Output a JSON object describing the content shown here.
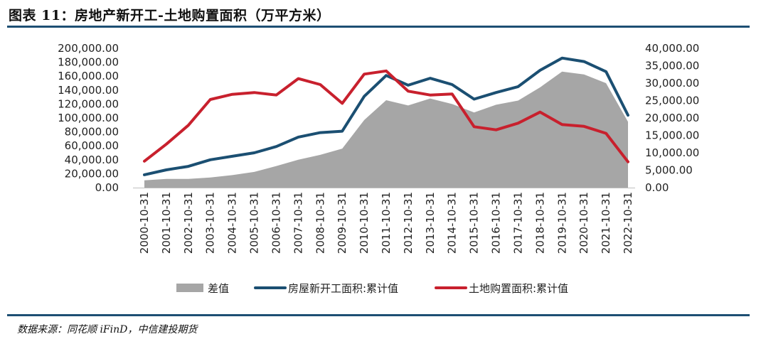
{
  "header": {
    "title": "图表 11：房地产新开工-土地购置面积（万平方米）"
  },
  "source": {
    "text": "数据来源：同花顺 iFinD，中信建投期货"
  },
  "chart_data": {
    "type": "line",
    "categories": [
      "2000-10-31",
      "2001-10-31",
      "2002-10-31",
      "2003-10-31",
      "2004-10-31",
      "2005-10-31",
      "2006-10-31",
      "2007-10-31",
      "2008-10-31",
      "2009-10-31",
      "2010-10-31",
      "2011-10-31",
      "2012-10-31",
      "2013-10-31",
      "2014-10-31",
      "2015-10-31",
      "2016-10-31",
      "2017-10-31",
      "2018-10-31",
      "2019-10-31",
      "2020-10-31",
      "2021-10-31",
      "2022-10-31"
    ],
    "y_left": {
      "ylim": [
        0,
        200000
      ],
      "ticks": [
        "200,000.00",
        "180,000.00",
        "160,000.00",
        "140,000.00",
        "120,000.00",
        "100,000.00",
        "80,000.00",
        "60,000.00",
        "40,000.00",
        "20,000.00",
        "0.00"
      ]
    },
    "y_right": {
      "ylim": [
        0,
        40000
      ],
      "ticks": [
        "40,000.00",
        "35,000.00",
        "30,000.00",
        "25,000.00",
        "20,000.00",
        "15,000.00",
        "10,000.00",
        "5,000.00",
        "0.00"
      ]
    },
    "series": [
      {
        "name": "差值",
        "type": "area",
        "axis": "left",
        "color": "#a6a6a6",
        "values": [
          10500,
          12500,
          12500,
          14500,
          18000,
          22500,
          31000,
          40000,
          47000,
          56000,
          97000,
          125500,
          118000,
          128000,
          120000,
          108000,
          119000,
          125000,
          144000,
          166500,
          162500,
          150000,
          94500
        ]
      },
      {
        "name": "房屋新开工面积:累计值",
        "type": "line",
        "axis": "left",
        "color": "#1b4f72",
        "values": [
          18500,
          25500,
          30500,
          40000,
          45000,
          50000,
          59000,
          72500,
          79000,
          81000,
          131000,
          161000,
          147000,
          157000,
          148000,
          127000,
          136500,
          145000,
          168500,
          186000,
          181000,
          166500,
          104000
        ]
      },
      {
        "name": "土地购置面积:累计值",
        "type": "line",
        "axis": "right",
        "color": "#c8202d",
        "values": [
          7600,
          12500,
          17900,
          25300,
          26800,
          27300,
          26600,
          31300,
          29600,
          24200,
          32600,
          33500,
          27700,
          26600,
          26900,
          17500,
          16600,
          18500,
          21700,
          18100,
          17600,
          15600,
          7400
        ]
      }
    ]
  }
}
